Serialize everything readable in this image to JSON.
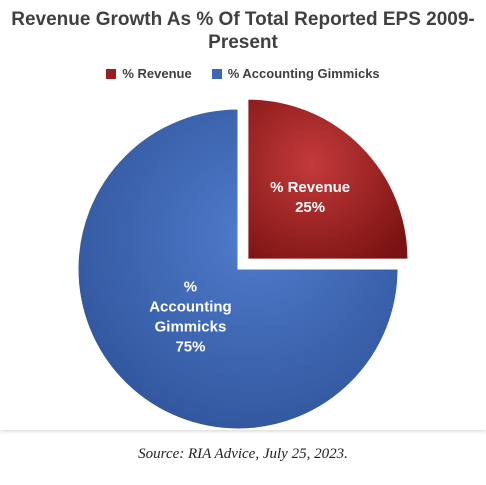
{
  "chart_data": {
    "type": "pie",
    "title": "Revenue Growth As % Of Total Reported EPS 2009-Present",
    "title_lines": [
      "Revenue Growth As % Of Total Reported EPS 2009-",
      "Present"
    ],
    "legend_placement": "top",
    "slices": [
      {
        "name": "% Revenue",
        "value": 25,
        "value_label": "25%",
        "label_lines": [
          "% Revenue",
          "25%"
        ],
        "color": "#9b1c1c",
        "exploded": true
      },
      {
        "name": "% Accounting Gimmicks",
        "value": 75,
        "value_label": "75%",
        "label_lines": [
          "%",
          "Accounting",
          "Gimmicks",
          "75%"
        ],
        "color": "#3d68b4",
        "exploded": false
      }
    ]
  },
  "source": "Source: RIA Advice, July 25, 2023."
}
